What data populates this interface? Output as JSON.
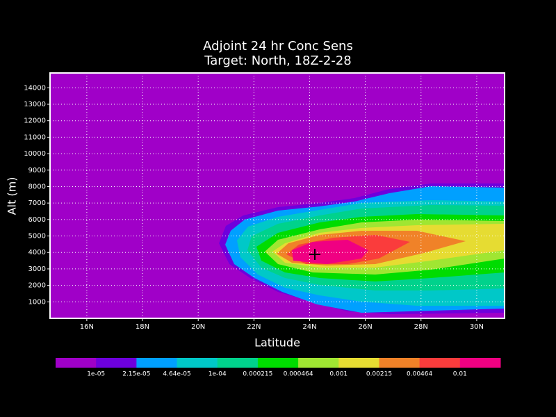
{
  "chart_data": {
    "type": "contour",
    "title": [
      "Adjoint 24 hr Conc Sens",
      "Target: North, 18Z-2-28"
    ],
    "xlabel": "Latitude",
    "ylabel": "Alt (m)",
    "xlim": [
      14.68,
      31
    ],
    "ylim": [
      0,
      14900
    ],
    "xticks": [
      {
        "value": 16,
        "label": "16N"
      },
      {
        "value": 18,
        "label": "18N"
      },
      {
        "value": 20,
        "label": "20N"
      },
      {
        "value": 22,
        "label": "22N"
      },
      {
        "value": 24,
        "label": "24N"
      },
      {
        "value": 26,
        "label": "26N"
      },
      {
        "value": 28,
        "label": "28N"
      },
      {
        "value": 30,
        "label": "30N"
      }
    ],
    "yticks": [
      1000,
      2000,
      3000,
      4000,
      5000,
      6000,
      7000,
      8000,
      9000,
      10000,
      11000,
      12000,
      13000,
      14000
    ],
    "grid": true,
    "levels": [
      {
        "value": 1e-05,
        "label": "1e-05"
      },
      {
        "value": 2.15e-05,
        "label": "2.15e-05"
      },
      {
        "value": 4.64e-05,
        "label": "4.64e-05"
      },
      {
        "value": 0.0001,
        "label": "1e-04"
      },
      0.000215,
      0.000464,
      0.001,
      0.00215,
      0.00464,
      0.01
    ],
    "colors": [
      "#a000c8",
      "#6e00dc",
      "#00a0ff",
      "#00c8c8",
      "#00d28c",
      "#00dc00",
      "#a0e632",
      "#e6dc32",
      "#f08228",
      "#fa3c3c",
      "#f00082"
    ]
  }
}
